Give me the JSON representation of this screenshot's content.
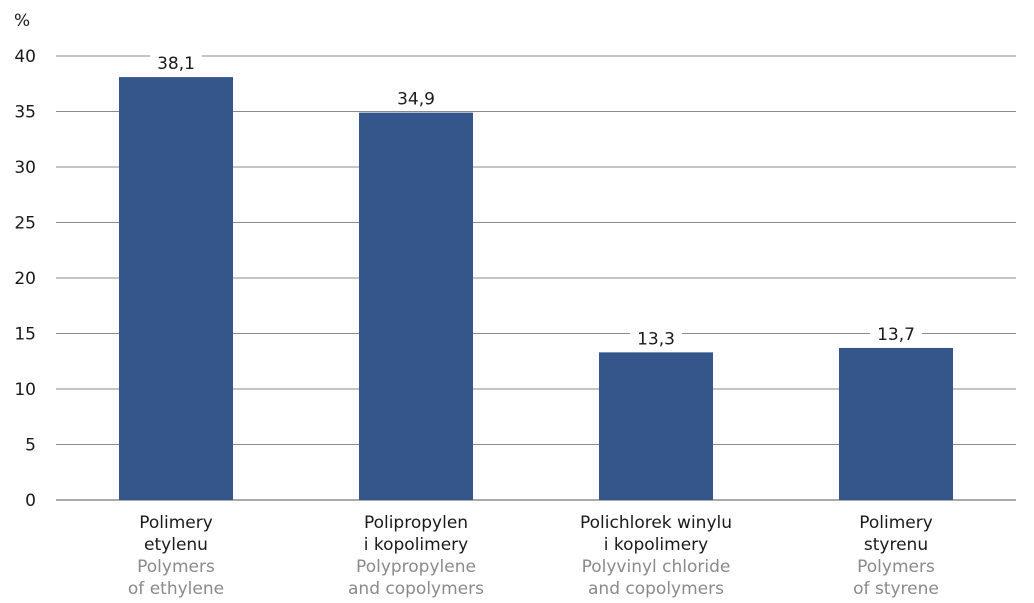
{
  "chart_data": {
    "type": "bar",
    "y_unit": "%",
    "categories": [
      {
        "label_pl": [
          "Polimery",
          "etylenu"
        ],
        "label_en": [
          "Polymers",
          "of ethylene"
        ]
      },
      {
        "label_pl": [
          "Polipropylen",
          "i kopolimery"
        ],
        "label_en": [
          "Polypropylene",
          "and copolymers"
        ]
      },
      {
        "label_pl": [
          "Polichlorek winylu",
          "i kopolimery"
        ],
        "label_en": [
          "Polyvinyl chloride",
          "and copolymers"
        ]
      },
      {
        "label_pl": [
          "Polimery",
          "styrenu"
        ],
        "label_en": [
          "Polymers",
          "of styrene"
        ]
      }
    ],
    "values": [
      38.1,
      34.9,
      13.3,
      13.7
    ],
    "value_labels": [
      "38,1",
      "34,9",
      "13,3",
      "13,7"
    ],
    "ylim": [
      0,
      40
    ],
    "yticks": [
      0,
      5,
      10,
      15,
      20,
      25,
      30,
      35,
      40
    ],
    "grid": true,
    "bar_color": "#34568b",
    "gridline_color": "#8a8a8a",
    "english_label_color": "#8a8a8a"
  }
}
